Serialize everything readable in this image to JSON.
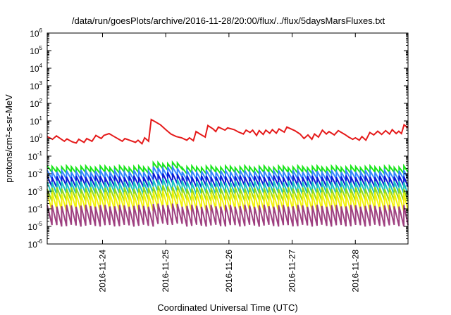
{
  "chart_data": {
    "type": "line",
    "title": "/data/run/goesPlots/archive/2016-11-28/20:00/flux/../flux/5daysMarsFluxes.txt",
    "xlabel": "Coordinated Universal Time (UTC)",
    "ylabel": "protons/cm²-s-sr-MeV",
    "yscale": "log",
    "ylim": [
      1e-06,
      1000000.0
    ],
    "y_ticks": [
      {
        "base": "10",
        "exp": "6",
        "value": 1000000.0
      },
      {
        "base": "10",
        "exp": "5",
        "value": 100000.0
      },
      {
        "base": "10",
        "exp": "4",
        "value": 10000.0
      },
      {
        "base": "10",
        "exp": "3",
        "value": 1000.0
      },
      {
        "base": "10",
        "exp": "2",
        "value": 100.0
      },
      {
        "base": "10",
        "exp": "1",
        "value": 10.0
      },
      {
        "base": "10",
        "exp": "0",
        "value": 1.0
      },
      {
        "base": "10",
        "exp": "-1",
        "value": 0.1
      },
      {
        "base": "10",
        "exp": "-2",
        "value": 0.01
      },
      {
        "base": "10",
        "exp": "-3",
        "value": 0.001
      },
      {
        "base": "10",
        "exp": "-4",
        "value": 0.0001
      },
      {
        "base": "10",
        "exp": "-5",
        "value": 1e-05
      },
      {
        "base": "10",
        "exp": "-6",
        "value": 1e-06
      }
    ],
    "x_range": [
      "2016-11-23T03:00",
      "2016-11-28T20:00"
    ],
    "x_ticks": [
      {
        "label": "2016-11-24",
        "value": "2016-11-24T00:00"
      },
      {
        "label": "2016-11-25",
        "value": "2016-11-25T00:00"
      },
      {
        "label": "2016-11-26",
        "value": "2016-11-26T00:00"
      },
      {
        "label": "2016-11-27",
        "value": "2016-11-27T00:00"
      },
      {
        "label": "2016-11-28",
        "value": "2016-11-28T00:00"
      }
    ],
    "grid": false,
    "legend": "none",
    "series": [
      {
        "color": "#e51a1a",
        "width": 2,
        "points": [
          [
            "2016-11-23T03:00",
            1.3
          ],
          [
            "2016-11-23T05:00",
            0.9
          ],
          [
            "2016-11-23T06:30",
            1.4
          ],
          [
            "2016-11-23T09:30",
            0.7
          ],
          [
            "2016-11-23T10:30",
            0.95
          ],
          [
            "2016-11-23T12:30",
            0.65
          ],
          [
            "2016-11-23T14:00",
            0.55
          ],
          [
            "2016-11-23T15:00",
            0.9
          ],
          [
            "2016-11-23T17:00",
            0.6
          ],
          [
            "2016-11-23T18:00",
            1.0
          ],
          [
            "2016-11-23T20:00",
            0.7
          ],
          [
            "2016-11-23T21:30",
            1.5
          ],
          [
            "2016-11-23T23:30",
            1.0
          ],
          [
            "2016-11-24T00:30",
            1.5
          ],
          [
            "2016-11-24T02:30",
            1.9
          ],
          [
            "2016-11-24T04:00",
            1.4
          ],
          [
            "2016-11-24T07:30",
            0.7
          ],
          [
            "2016-11-24T08:30",
            1.0
          ],
          [
            "2016-11-24T12:30",
            0.6
          ],
          [
            "2016-11-24T13:30",
            0.8
          ],
          [
            "2016-11-24T15:00",
            0.5
          ],
          [
            "2016-11-24T16:00",
            1.1
          ],
          [
            "2016-11-24T17:30",
            0.7
          ],
          [
            "2016-11-24T18:30",
            12
          ],
          [
            "2016-11-24T20:00",
            9
          ],
          [
            "2016-11-24T22:00",
            6
          ],
          [
            "2016-11-25T00:00",
            3.2
          ],
          [
            "2016-11-25T02:00",
            1.8
          ],
          [
            "2016-11-25T04:00",
            1.3
          ],
          [
            "2016-11-25T06:00",
            1.1
          ],
          [
            "2016-11-25T08:00",
            0.8
          ],
          [
            "2016-11-25T09:00",
            1.1
          ],
          [
            "2016-11-25T10:30",
            0.75
          ],
          [
            "2016-11-25T11:30",
            2.5
          ],
          [
            "2016-11-25T13:00",
            1.8
          ],
          [
            "2016-11-25T15:00",
            1.2
          ],
          [
            "2016-11-25T16:00",
            5.5
          ],
          [
            "2016-11-25T18:00",
            3.5
          ],
          [
            "2016-11-25T19:00",
            2.5
          ],
          [
            "2016-11-25T20:00",
            4.5
          ],
          [
            "2016-11-25T22:30",
            3.0
          ],
          [
            "2016-11-25T23:30",
            4.0
          ],
          [
            "2016-11-26T02:00",
            3.2
          ],
          [
            "2016-11-26T03:30",
            2.4
          ],
          [
            "2016-11-26T05:30",
            1.8
          ],
          [
            "2016-11-26T06:30",
            3.0
          ],
          [
            "2016-11-26T08:00",
            2.2
          ],
          [
            "2016-11-26T09:00",
            3.0
          ],
          [
            "2016-11-26T10:30",
            1.5
          ],
          [
            "2016-11-26T11:30",
            2.8
          ],
          [
            "2016-11-26T13:00",
            1.7
          ],
          [
            "2016-11-26T14:00",
            3.0
          ],
          [
            "2016-11-26T15:30",
            2.0
          ],
          [
            "2016-11-26T16:30",
            3.2
          ],
          [
            "2016-11-26T18:00",
            2.0
          ],
          [
            "2016-11-26T19:00",
            3.5
          ],
          [
            "2016-11-26T21:00",
            2.3
          ],
          [
            "2016-11-26T22:00",
            4.5
          ],
          [
            "2016-11-27T01:00",
            2.8
          ],
          [
            "2016-11-27T03:00",
            1.8
          ],
          [
            "2016-11-27T04:30",
            1.0
          ],
          [
            "2016-11-27T06:00",
            1.6
          ],
          [
            "2016-11-27T07:30",
            0.9
          ],
          [
            "2016-11-27T08:30",
            1.8
          ],
          [
            "2016-11-27T10:00",
            1.2
          ],
          [
            "2016-11-27T11:30",
            3.0
          ],
          [
            "2016-11-27T13:00",
            1.8
          ],
          [
            "2016-11-27T14:00",
            2.5
          ],
          [
            "2016-11-27T16:00",
            1.6
          ],
          [
            "2016-11-27T17:30",
            2.8
          ],
          [
            "2016-11-27T20:00",
            1.7
          ],
          [
            "2016-11-27T21:30",
            1.2
          ],
          [
            "2016-11-27T23:00",
            0.9
          ],
          [
            "2016-11-28T00:00",
            1.1
          ],
          [
            "2016-11-28T01:30",
            0.8
          ],
          [
            "2016-11-28T02:30",
            1.3
          ],
          [
            "2016-11-28T04:00",
            0.8
          ],
          [
            "2016-11-28T05:30",
            2.2
          ],
          [
            "2016-11-28T07:00",
            1.6
          ],
          [
            "2016-11-28T08:30",
            2.6
          ],
          [
            "2016-11-28T10:00",
            1.7
          ],
          [
            "2016-11-28T11:30",
            2.8
          ],
          [
            "2016-11-28T13:00",
            1.8
          ],
          [
            "2016-11-28T14:00",
            3.2
          ],
          [
            "2016-11-28T15:30",
            1.9
          ],
          [
            "2016-11-28T16:30",
            2.6
          ],
          [
            "2016-11-28T17:30",
            1.9
          ],
          [
            "2016-11-28T18:30",
            6.0
          ],
          [
            "2016-11-28T20:00",
            4.0
          ]
        ]
      },
      {
        "color": "#1ae51a",
        "width": 2,
        "pattern": "sawtooth",
        "start": "2016-11-23T03:00",
        "end": "2016-11-28T20:00",
        "period_hours": 1.83,
        "high": 0.025,
        "low": 0.011,
        "bump": {
          "at": "2016-11-24T18:30",
          "factor": 1.6
        }
      },
      {
        "color": "#3385ff",
        "width": 2,
        "pattern": "sawtooth",
        "start": "2016-11-23T03:00",
        "end": "2016-11-28T20:00",
        "period_hours": 1.83,
        "high": 0.014,
        "low": 0.0045,
        "bump": {
          "at": "2016-11-24T18:30",
          "factor": 1.6
        }
      },
      {
        "color": "#0a1ad6",
        "width": 2,
        "pattern": "sawtooth",
        "start": "2016-11-23T03:00",
        "end": "2016-11-28T20:00",
        "period_hours": 1.83,
        "high": 0.007,
        "low": 0.0018,
        "bump": {
          "at": "2016-11-24T18:30",
          "factor": 1.5
        }
      },
      {
        "color": "#1ac2c2",
        "width": 2,
        "pattern": "sawtooth",
        "start": "2016-11-23T03:00",
        "end": "2016-11-28T20:00",
        "period_hours": 1.83,
        "high": 0.0035,
        "low": 0.0007,
        "bump": {
          "at": "2016-11-24T18:30",
          "factor": 1.4
        }
      },
      {
        "color": "#8fd91a",
        "width": 2,
        "pattern": "sawtooth",
        "start": "2016-11-23T03:00",
        "end": "2016-11-28T20:00",
        "period_hours": 1.83,
        "high": 0.0015,
        "low": 0.0003,
        "bump": {
          "at": "2016-11-24T18:30",
          "factor": 1.3
        }
      },
      {
        "color": "#f2f20a",
        "width": 2,
        "pattern": "sawtooth",
        "start": "2016-11-23T03:00",
        "end": "2016-11-28T20:00",
        "period_hours": 1.83,
        "high": 0.0008,
        "low": 8e-05,
        "bump": {
          "at": "2016-11-24T18:30",
          "factor": 1.3
        }
      },
      {
        "color": "#9e4080",
        "width": 2,
        "pattern": "sawtooth",
        "start": "2016-11-23T03:00",
        "end": "2016-11-28T20:00",
        "period_hours": 1.83,
        "high": 0.00015,
        "low": 1.1e-05,
        "bump": {
          "at": "2016-11-24T18:30",
          "factor": 1.2
        }
      }
    ]
  }
}
